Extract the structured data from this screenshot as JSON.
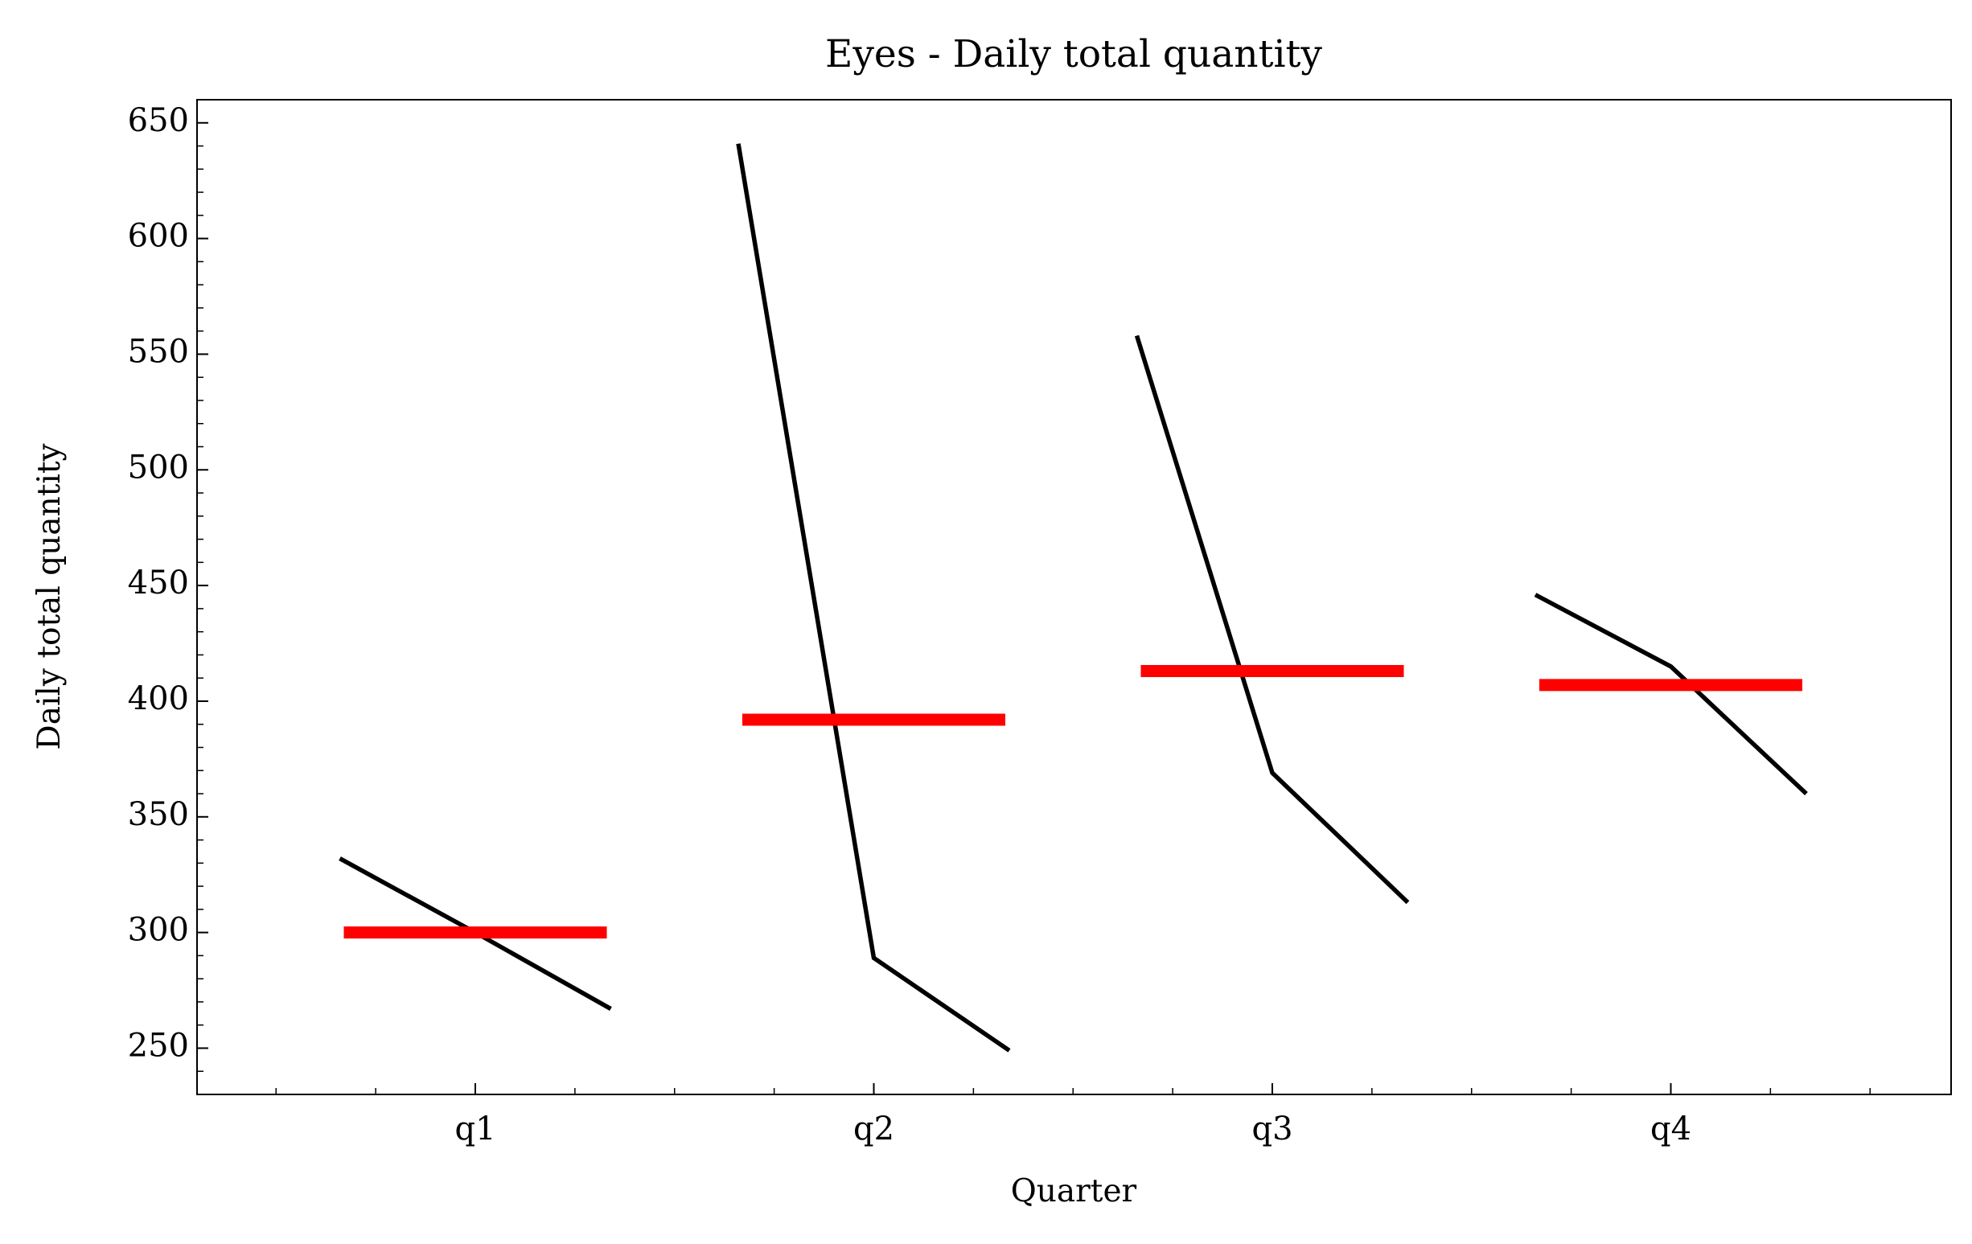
{
  "chart_data": {
    "type": "quarter",
    "title": "Eyes - Daily total quantity",
    "x_label": "Quarter",
    "y_label": "Daily total quantity",
    "categories": [
      "q1",
      "q2",
      "q3",
      "q4"
    ],
    "values": [
      [
        332,
        300,
        267
      ],
      [
        641,
        289,
        249
      ],
      [
        558,
        369,
        313
      ],
      [
        446,
        415,
        360
      ]
    ],
    "means": [
      300,
      392,
      413,
      407
    ],
    "color": "#000000",
    "mean_color": "#ff0000",
    "ylim": [
      230,
      660
    ],
    "yticks": [
      250,
      300,
      350,
      400,
      450,
      500,
      550,
      600,
      650
    ]
  }
}
